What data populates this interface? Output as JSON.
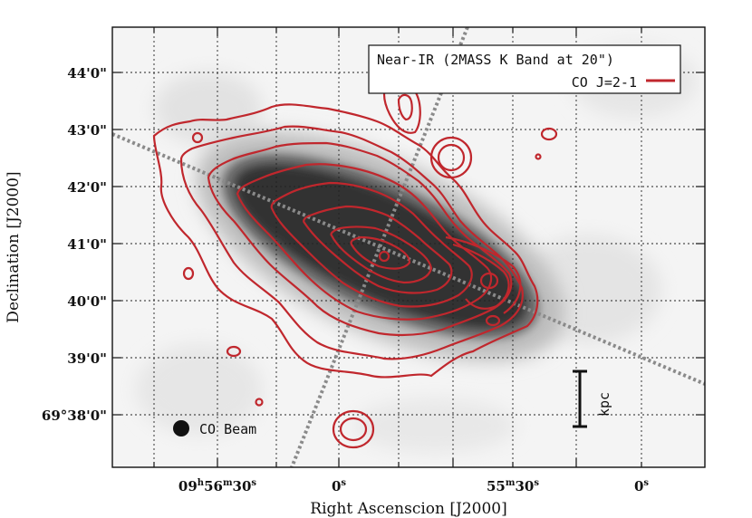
{
  "figure": {
    "xlabel": "Right Ascenscion [J2000]",
    "ylabel": "Declination [J2000]",
    "x_ticks": [
      {
        "hh": "09",
        "h": "h",
        "mm": "56",
        "m": "m",
        "ss": "30",
        "s": "s"
      },
      {
        "ss": "0",
        "s": "s"
      },
      {
        "mm": "55",
        "m": "m",
        "ss": "30",
        "s": "s"
      },
      {
        "ss": "0",
        "s": "s"
      }
    ],
    "y_ticks": [
      "44'0\"",
      "43'0\"",
      "42'0\"",
      "41'0\"",
      "40'0\"",
      "39'0\"",
      "69°38'0\""
    ],
    "legend": {
      "entry1": "Near-IR (2MASS K Band at 20\")",
      "entry2": "CO J=2-1",
      "co_color": "#c0272d"
    },
    "beam_label": "CO Beam",
    "scalebar_label": "kpc"
  },
  "chart_data": {
    "type": "contour",
    "title": "",
    "xlabel": "Right Ascenscion [J2000]",
    "ylabel": "Declination [J2000]",
    "x_axis_ticks": [
      "09h56m30s",
      "0s",
      "55m30s",
      "0s"
    ],
    "y_axis_ticks": [
      "44'0\"",
      "43'0\"",
      "42'0\"",
      "41'0\"",
      "40'0\"",
      "39'0\"",
      "69°38'0\""
    ],
    "grid": true,
    "legend_position": "top-right",
    "series": [
      {
        "name": "Near-IR (2MASS K Band at 20\")",
        "kind": "greyscale-image",
        "color": "#333333"
      },
      {
        "name": "CO J=2-1",
        "kind": "contours",
        "color": "#c0272d"
      }
    ]
  }
}
